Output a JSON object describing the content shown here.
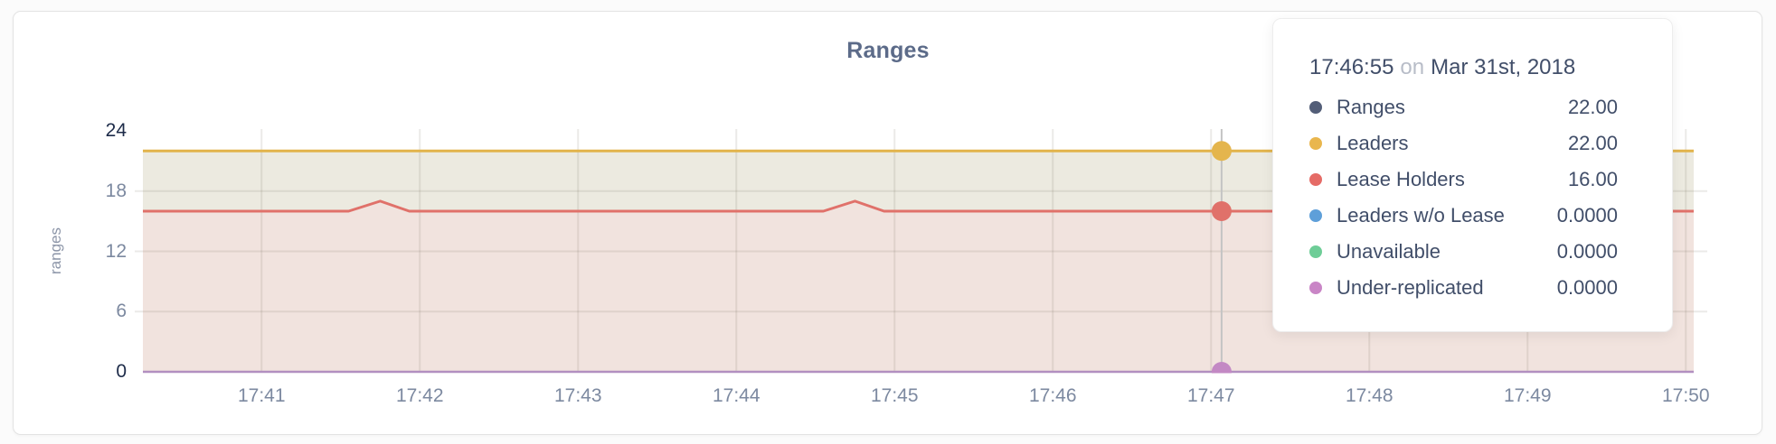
{
  "chart_data": {
    "type": "area",
    "title": "Ranges",
    "xlabel": "",
    "ylabel": "ranges",
    "x_domain": [
      "17:40:15",
      "17:50:03"
    ],
    "x_ticks": [
      "17:41",
      "17:42",
      "17:43",
      "17:44",
      "17:45",
      "17:46",
      "17:47",
      "17:48",
      "17:49",
      "17:50"
    ],
    "y_domain": [
      0,
      24
    ],
    "y_ticks": [
      0,
      6,
      12,
      18,
      24
    ],
    "y_ticks_emphasized": [
      0,
      24
    ],
    "grid": true,
    "legend_position": "tooltip-only",
    "series": [
      {
        "name": "Ranges",
        "color": "#535E78",
        "line_width": 2.5,
        "points": [
          [
            "17:40:15",
            22
          ],
          [
            "17:50:03",
            22
          ]
        ]
      },
      {
        "name": "Leaders",
        "color": "#E2B34B",
        "line_width": 3,
        "points": [
          [
            "17:40:15",
            22
          ],
          [
            "17:50:03",
            22
          ]
        ]
      },
      {
        "name": "Lease Holders",
        "color": "#E0716A",
        "line_width": 3,
        "points": [
          [
            "17:40:15",
            16
          ],
          [
            "17:41:33",
            16
          ],
          [
            "17:41:45",
            17
          ],
          [
            "17:41:56",
            16
          ],
          [
            "17:44:33",
            16
          ],
          [
            "17:44:45",
            17
          ],
          [
            "17:44:56",
            16
          ],
          [
            "17:50:03",
            16
          ]
        ]
      },
      {
        "name": "Leaders w/o Lease",
        "color": "#5E9FD9",
        "line_width": 1.5,
        "points": [
          [
            "17:40:15",
            0
          ],
          [
            "17:50:03",
            0
          ]
        ]
      },
      {
        "name": "Unavailable",
        "color": "#6ECD97",
        "line_width": 1.5,
        "points": [
          [
            "17:40:15",
            0
          ],
          [
            "17:50:03",
            0
          ]
        ]
      },
      {
        "name": "Under-replicated",
        "color": "#B28FC0",
        "line_width": 2.5,
        "points": [
          [
            "17:40:15",
            0
          ],
          [
            "17:50:03",
            0
          ]
        ]
      }
    ],
    "area_band_colors": {
      "between_leaders_and_lease_holders": "#ECEAE0",
      "below_lease_holders": "#F1E3DE"
    },
    "hover": {
      "guideline_time": "17:47:04",
      "guideline_color": "#C4C4C4",
      "marker_radius": 11,
      "markers": [
        {
          "series": "Leaders",
          "value": 22,
          "color": "#E4B54D"
        },
        {
          "series": "Lease Holders",
          "value": 16,
          "color": "#E0716A"
        },
        {
          "series": "Under-replicated",
          "value": 0,
          "color": "#C389C4"
        }
      ]
    }
  },
  "tooltip": {
    "time": "17:46:55",
    "on_word": "on",
    "date": "Mar 31st, 2018",
    "rows": [
      {
        "label": "Ranges",
        "value": "22.00",
        "color": "#535E78"
      },
      {
        "label": "Leaders",
        "value": "22.00",
        "color": "#E9B64D"
      },
      {
        "label": "Lease Holders",
        "value": "16.00",
        "color": "#E56B66"
      },
      {
        "label": "Leaders w/o Lease",
        "value": "0.0000",
        "color": "#5E9FD9"
      },
      {
        "label": "Unavailable",
        "value": "0.0000",
        "color": "#6ECD97"
      },
      {
        "label": "Under-replicated",
        "value": "0.0000",
        "color": "#C985C6"
      }
    ]
  },
  "colors": {
    "title": "#5C6B89",
    "tick_light": "#7C89A0",
    "tick_dark": "#1D2B49",
    "axis_label": "#8C95A8",
    "gridline": "rgba(110,105,90,0.14)",
    "tooltip_text": "#414E69",
    "tooltip_muted": "#B8BDC8"
  }
}
